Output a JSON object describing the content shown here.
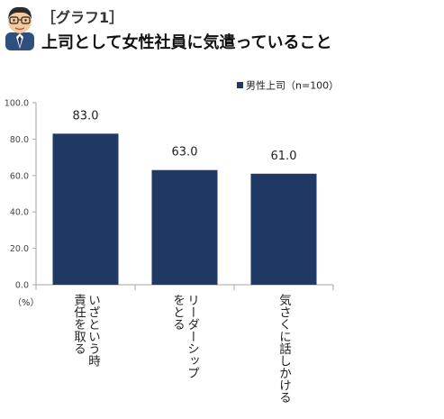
{
  "header": {
    "graph_label": "［グラフ1］",
    "title": "上司として女性社員に気遣っていること"
  },
  "chart_data": {
    "type": "bar",
    "categories": [
      "いざという時\n責任を取る",
      "リーダーシップ\nをとる",
      "気さくに話しかける"
    ],
    "series": [
      {
        "name": "男性上司（n=100）",
        "values": [
          83.0,
          63.0,
          61.0
        ]
      }
    ],
    "data_labels": [
      "83.0",
      "63.0",
      "61.0"
    ],
    "yticks": [
      "0.0",
      "20.0",
      "40.0",
      "60.0",
      "80.0",
      "100.0"
    ],
    "ylim": [
      0,
      100
    ],
    "unit_label": "（%）",
    "title": "上司として女性社員に気遣っていること",
    "legend_position": "top-right",
    "grid": false,
    "colors": {
      "bar": "#1f3864",
      "axis": "#a6a6a6"
    }
  }
}
